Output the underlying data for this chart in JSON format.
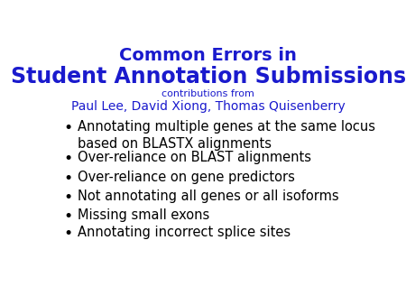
{
  "title_line1": "Common Errors in",
  "title_line2": "Student Annotation Submissions",
  "subtitle_line1": "contributions from",
  "subtitle_line2": "Paul Lee, David Xiong, Thomas Quisenberry",
  "title_color": "#1a1acd",
  "background_color": "#ffffff",
  "bullet_items": [
    "Annotating multiple genes at the same locus\nbased on BLASTX alignments",
    "Over-reliance on BLAST alignments",
    "Over-reliance on gene predictors",
    "Not annotating all genes or all isoforms",
    "Missing small exons",
    "Annotating incorrect splice sites"
  ],
  "title1_fontsize": 14,
  "title2_fontsize": 17,
  "subtitle1_fontsize": 8,
  "subtitle2_fontsize": 10,
  "bullet_fontsize": 10.5
}
